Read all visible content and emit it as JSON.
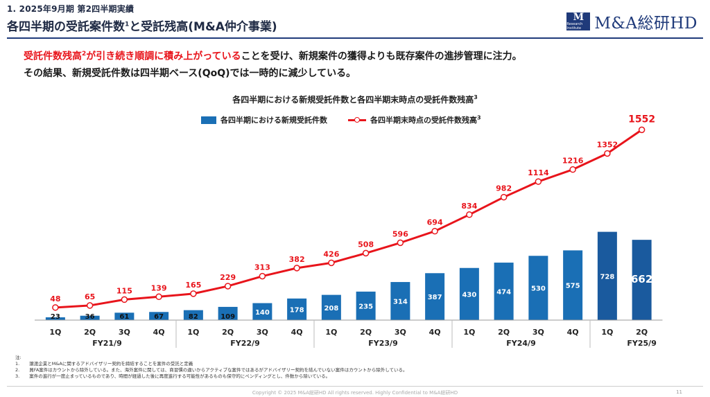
{
  "header": {
    "section_label": "1. 2025年9月期 第2四半期実績",
    "title_main": "各四半期の受託案件数",
    "title_sup": "1",
    "title_rest": "と受託残高(M&A仲介事業)"
  },
  "logo": {
    "mark_letter": "M",
    "mark_small": "Research Institute",
    "text": "M&A総研HD"
  },
  "lead": {
    "red_text_a": "受託件数残高",
    "red_sup": "2",
    "red_text_b": "が引き続き順調に積み上がっている",
    "line1_rest": "ことを受け、新規案件の獲得よりも既存案件の進捗管理に注力。",
    "line2": "その結果、新規受託件数は四半期ベース(QoQ)では一時的に減少している。"
  },
  "chart_data": {
    "type": "bar+line",
    "title": "各四半期における新規受託件数と各四半期末時点の受託件数残高",
    "title_sup": "3",
    "legend": [
      {
        "name": "各四半期における新規受託件数",
        "kind": "bar",
        "color": "#1a6fb5"
      },
      {
        "name": "各四半期末時点の受託件数残高",
        "sup": "3",
        "kind": "line",
        "color": "#e8141b"
      }
    ],
    "categories": [
      "1Q",
      "2Q",
      "3Q",
      "4Q",
      "1Q",
      "2Q",
      "3Q",
      "4Q",
      "1Q",
      "2Q",
      "3Q",
      "4Q",
      "1Q",
      "2Q",
      "3Q",
      "4Q",
      "1Q",
      "2Q"
    ],
    "groups": [
      {
        "label": "FY21/9",
        "count": 4
      },
      {
        "label": "FY22/9",
        "count": 4
      },
      {
        "label": "FY23/9",
        "count": 4
      },
      {
        "label": "FY24/9",
        "count": 4
      },
      {
        "label": "FY25/9",
        "count": 2
      }
    ],
    "series": [
      {
        "name": "各四半期における新規受託件数",
        "type": "bar",
        "values": [
          23,
          36,
          61,
          67,
          82,
          109,
          140,
          178,
          208,
          235,
          314,
          387,
          430,
          474,
          530,
          575,
          728,
          662
        ]
      },
      {
        "name": "各四半期末時点の受託件数残高",
        "type": "line",
        "values": [
          48,
          65,
          115,
          139,
          165,
          229,
          313,
          382,
          426,
          508,
          596,
          694,
          834,
          982,
          1114,
          1216,
          1352,
          1552
        ]
      }
    ],
    "colors": {
      "bar": "#1a6fb5",
      "bar_latest": "#1a5a9e",
      "line": "#e8141b"
    }
  },
  "notes": {
    "heading": "注:",
    "items": [
      {
        "num": "1.",
        "text": "譲渡企業とM&Aに関するアドバイザリー契約を締結することを案件の受託と定義"
      },
      {
        "num": "2.",
        "text": "買FA案件はカウントから除外している。また、海外案件に関しては、商習慣の違いからアクティブな案件ではあるがアドバイザリー契約を結んでいない案件はカウントから除外している。"
      },
      {
        "num": "3.",
        "text": "案件の進行が一度止まっているものであり、時間が経過した後に再度進行する可能性があるものも保守的にペンディングとし、件数から除いている。"
      }
    ]
  },
  "footer": {
    "copyright": "Copyright © 2025 M&A総研HD All rights reserved. Highly Confidential to M&A総研HD",
    "page_number": "11"
  }
}
